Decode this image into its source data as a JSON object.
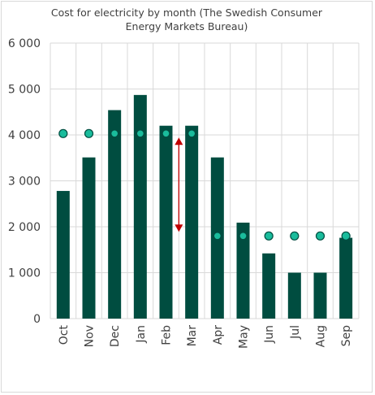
{
  "chart_data": {
    "type": "bar",
    "title_line1": "Cost for electricity by month (The Swedish Consumer",
    "title_line2": "Energy Markets Bureau)",
    "categories": [
      "Oct",
      "Nov",
      "Dec",
      "Jan",
      "Feb",
      "Mar",
      "Apr",
      "May",
      "Jun",
      "Jul",
      "Aug",
      "Sep"
    ],
    "series": [
      {
        "kind": "bar",
        "values": [
          2780,
          3510,
          4540,
          4870,
          4200,
          4200,
          3510,
          2090,
          1420,
          1000,
          1000,
          1760
        ]
      },
      {
        "kind": "marker",
        "values": [
          4030,
          4030,
          4030,
          4030,
          4030,
          4030,
          1800,
          1800,
          1800,
          1800,
          1800,
          1800
        ]
      }
    ],
    "yticks": [
      "0",
      "1 000",
      "2 000",
      "3 000",
      "4 000",
      "5 000",
      "6 000"
    ],
    "ylim": [
      0,
      6000
    ],
    "grid": "horizontal",
    "annotation": {
      "type": "double-arrow",
      "category": "Feb",
      "from": 4030,
      "to": 1800
    },
    "colors": {
      "bar": "#004d40",
      "marker_fill": "#1abc9c",
      "marker_stroke": "#004d40",
      "grid": "#d9d9d9",
      "arrow": "#c00000"
    }
  }
}
